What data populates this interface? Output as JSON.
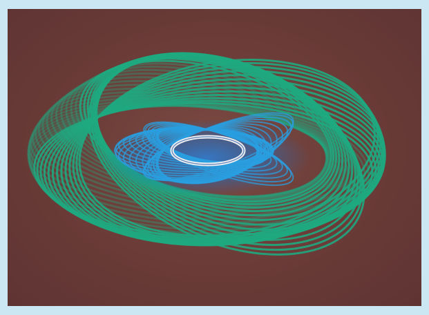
{
  "figure": {
    "subject": "3d-torus-spiral-coil",
    "colors": {
      "border": "#cbe7f4",
      "background": "#6a3b37",
      "outer_coil": "#1fa880",
      "inner_coil": "#2a9fe0",
      "core_ring": "#f2f2f2"
    }
  }
}
